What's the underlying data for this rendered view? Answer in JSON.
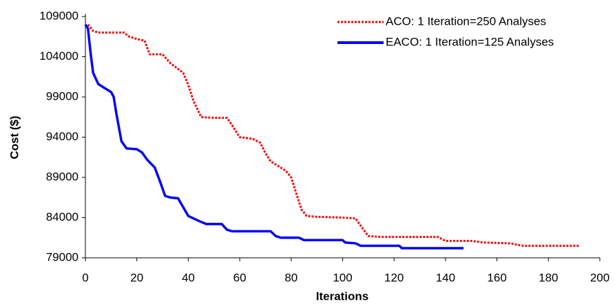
{
  "chart_data": {
    "type": "line",
    "x_label": "Iterations",
    "y_label": "Cost ($)",
    "xlim": [
      0,
      200
    ],
    "xticks": [
      0,
      20,
      40,
      60,
      80,
      100,
      120,
      140,
      160,
      180,
      200
    ],
    "ylim": [
      79000,
      109000
    ],
    "yticks": [
      79000,
      84000,
      89000,
      94000,
      99000,
      104000,
      109000
    ],
    "legend": "top-right",
    "series": [
      {
        "name": "ACO: 1 Iteration=250 Analyses",
        "color": "#ff0000",
        "style": "dotted",
        "x": [
          1,
          3,
          5,
          10,
          15,
          17,
          20,
          23,
          25,
          30,
          33,
          38,
          40,
          42,
          45,
          50,
          55,
          57,
          60,
          65,
          68,
          70,
          72,
          78,
          80,
          82,
          84,
          86,
          90,
          100,
          105,
          107,
          110,
          115,
          130,
          137,
          140,
          150,
          155,
          165,
          170,
          192
        ],
        "values": [
          108000,
          107200,
          107000,
          107000,
          107000,
          106500,
          106200,
          106000,
          104300,
          104300,
          103200,
          102000,
          100500,
          98500,
          96500,
          96400,
          96400,
          95500,
          94000,
          93800,
          93300,
          92000,
          91000,
          89800,
          89000,
          87000,
          85000,
          84200,
          84100,
          84000,
          83900,
          83000,
          81700,
          81600,
          81600,
          81600,
          81100,
          81100,
          80900,
          80800,
          80500,
          80500
        ]
      },
      {
        "name": "EACO: 1 Iteration=125 Analyses",
        "color": "#0000ff",
        "style": "solid",
        "x": [
          0,
          1,
          2,
          3,
          5,
          7,
          10,
          11,
          12,
          14,
          16,
          20,
          22,
          24,
          27,
          29,
          31,
          33,
          36,
          38,
          40,
          44,
          47,
          53,
          55,
          57,
          72,
          74,
          76,
          83,
          85,
          100,
          101,
          105,
          107,
          122,
          123,
          135,
          147
        ],
        "values": [
          108000,
          107500,
          104500,
          102000,
          100600,
          100200,
          99600,
          99000,
          97000,
          93500,
          92600,
          92500,
          92100,
          91200,
          90200,
          88500,
          86700,
          86500,
          86400,
          85300,
          84200,
          83600,
          83200,
          83200,
          82500,
          82300,
          82300,
          81700,
          81500,
          81500,
          81200,
          81200,
          80900,
          80800,
          80500,
          80500,
          80200,
          80200,
          80200
        ]
      }
    ]
  }
}
